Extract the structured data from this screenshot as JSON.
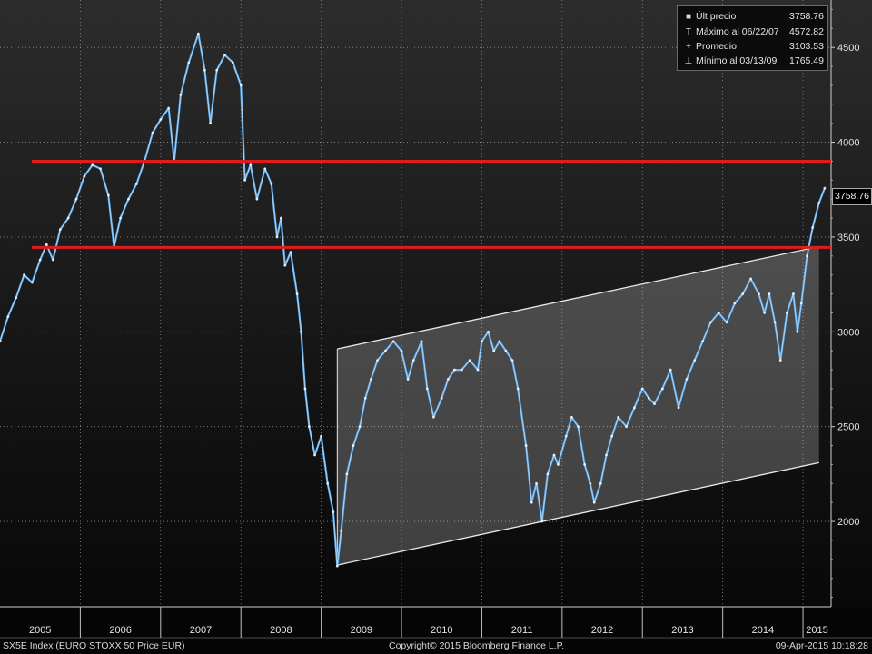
{
  "legend": {
    "items": [
      {
        "marker": "■",
        "label": "Últ precio",
        "value": "3758.76"
      },
      {
        "marker": "T",
        "label": "Máximo al 06/22/07",
        "value": "4572.82"
      },
      {
        "marker": "+",
        "label": "Promedio",
        "value": "3103.53"
      },
      {
        "marker": "⊥",
        "label": "Mínimo al 03/13/09",
        "value": "1765.49"
      }
    ]
  },
  "last_price_label": "3758.76",
  "footer": {
    "left": "SX5E Index (EURO STOXX 50 Price EUR)",
    "center": "Copyright© 2015 Bloomberg Finance L.P.",
    "right": "09-Apr-2015 10:18:28"
  },
  "colors": {
    "price": "#5aa9ec",
    "resistance": "#e01b1b",
    "channel": "#e8e8e8",
    "grid": "#8a8a8a"
  },
  "chart_data": {
    "type": "line",
    "title": "",
    "x_tick_labels": [
      "2005",
      "2006",
      "2007",
      "2008",
      "2009",
      "2010",
      "2011",
      "2012",
      "2013",
      "2014",
      "2015"
    ],
    "y_ticks": [
      2000,
      2500,
      3000,
      3500,
      4000,
      4500
    ],
    "ylim": [
      1550,
      4750
    ],
    "xlim": [
      2005.0,
      2015.35
    ],
    "grid": true,
    "series": [
      {
        "values": [
          [
            2005.0,
            2950
          ],
          [
            2005.1,
            3080
          ],
          [
            2005.2,
            3180
          ],
          [
            2005.3,
            3300
          ],
          [
            2005.4,
            3260
          ],
          [
            2005.5,
            3380
          ],
          [
            2005.58,
            3460
          ],
          [
            2005.66,
            3380
          ],
          [
            2005.75,
            3540
          ],
          [
            2005.85,
            3600
          ],
          [
            2005.95,
            3700
          ],
          [
            2006.05,
            3820
          ],
          [
            2006.15,
            3880
          ],
          [
            2006.25,
            3860
          ],
          [
            2006.35,
            3720
          ],
          [
            2006.42,
            3450
          ],
          [
            2006.5,
            3600
          ],
          [
            2006.6,
            3700
          ],
          [
            2006.7,
            3780
          ],
          [
            2006.8,
            3900
          ],
          [
            2006.9,
            4050
          ],
          [
            2007.0,
            4120
          ],
          [
            2007.1,
            4180
          ],
          [
            2007.17,
            3900
          ],
          [
            2007.25,
            4250
          ],
          [
            2007.35,
            4420
          ],
          [
            2007.47,
            4572
          ],
          [
            2007.55,
            4380
          ],
          [
            2007.62,
            4100
          ],
          [
            2007.7,
            4380
          ],
          [
            2007.8,
            4460
          ],
          [
            2007.9,
            4420
          ],
          [
            2008.0,
            4300
          ],
          [
            2008.05,
            3800
          ],
          [
            2008.12,
            3880
          ],
          [
            2008.2,
            3700
          ],
          [
            2008.3,
            3860
          ],
          [
            2008.38,
            3780
          ],
          [
            2008.45,
            3500
          ],
          [
            2008.5,
            3600
          ],
          [
            2008.55,
            3350
          ],
          [
            2008.62,
            3420
          ],
          [
            2008.7,
            3200
          ],
          [
            2008.75,
            3000
          ],
          [
            2008.8,
            2700
          ],
          [
            2008.85,
            2500
          ],
          [
            2008.92,
            2350
          ],
          [
            2009.0,
            2450
          ],
          [
            2009.08,
            2200
          ],
          [
            2009.15,
            2050
          ],
          [
            2009.2,
            1765
          ],
          [
            2009.25,
            1950
          ],
          [
            2009.32,
            2250
          ],
          [
            2009.4,
            2400
          ],
          [
            2009.48,
            2500
          ],
          [
            2009.55,
            2650
          ],
          [
            2009.62,
            2750
          ],
          [
            2009.7,
            2850
          ],
          [
            2009.8,
            2900
          ],
          [
            2009.9,
            2950
          ],
          [
            2010.0,
            2900
          ],
          [
            2010.08,
            2750
          ],
          [
            2010.15,
            2850
          ],
          [
            2010.25,
            2950
          ],
          [
            2010.32,
            2700
          ],
          [
            2010.4,
            2550
          ],
          [
            2010.5,
            2650
          ],
          [
            2010.58,
            2750
          ],
          [
            2010.66,
            2800
          ],
          [
            2010.75,
            2800
          ],
          [
            2010.85,
            2850
          ],
          [
            2010.95,
            2800
          ],
          [
            2011.0,
            2950
          ],
          [
            2011.08,
            3000
          ],
          [
            2011.15,
            2900
          ],
          [
            2011.22,
            2950
          ],
          [
            2011.3,
            2900
          ],
          [
            2011.38,
            2850
          ],
          [
            2011.45,
            2700
          ],
          [
            2011.55,
            2400
          ],
          [
            2011.62,
            2100
          ],
          [
            2011.68,
            2200
          ],
          [
            2011.75,
            2000
          ],
          [
            2011.82,
            2250
          ],
          [
            2011.9,
            2350
          ],
          [
            2011.95,
            2300
          ],
          [
            2012.05,
            2450
          ],
          [
            2012.12,
            2550
          ],
          [
            2012.2,
            2500
          ],
          [
            2012.28,
            2300
          ],
          [
            2012.35,
            2200
          ],
          [
            2012.4,
            2100
          ],
          [
            2012.48,
            2200
          ],
          [
            2012.55,
            2350
          ],
          [
            2012.62,
            2450
          ],
          [
            2012.7,
            2550
          ],
          [
            2012.8,
            2500
          ],
          [
            2012.9,
            2600
          ],
          [
            2013.0,
            2700
          ],
          [
            2013.08,
            2650
          ],
          [
            2013.15,
            2620
          ],
          [
            2013.25,
            2700
          ],
          [
            2013.35,
            2800
          ],
          [
            2013.45,
            2600
          ],
          [
            2013.55,
            2750
          ],
          [
            2013.65,
            2850
          ],
          [
            2013.75,
            2950
          ],
          [
            2013.85,
            3050
          ],
          [
            2013.95,
            3100
          ],
          [
            2014.05,
            3050
          ],
          [
            2014.15,
            3150
          ],
          [
            2014.25,
            3200
          ],
          [
            2014.35,
            3280
          ],
          [
            2014.45,
            3200
          ],
          [
            2014.52,
            3100
          ],
          [
            2014.58,
            3200
          ],
          [
            2014.65,
            3050
          ],
          [
            2014.72,
            2850
          ],
          [
            2014.8,
            3100
          ],
          [
            2014.88,
            3200
          ],
          [
            2014.93,
            3000
          ],
          [
            2014.98,
            3150
          ],
          [
            2015.05,
            3400
          ],
          [
            2015.12,
            3550
          ],
          [
            2015.2,
            3680
          ],
          [
            2015.27,
            3758
          ]
        ]
      }
    ],
    "horizontal_lines": [
      3900,
      3445
    ],
    "channel": {
      "upper": [
        [
          2009.2,
          2910
        ],
        [
          2015.2,
          3450
        ]
      ],
      "lower": [
        [
          2009.2,
          1770
        ],
        [
          2015.2,
          2310
        ]
      ]
    }
  }
}
